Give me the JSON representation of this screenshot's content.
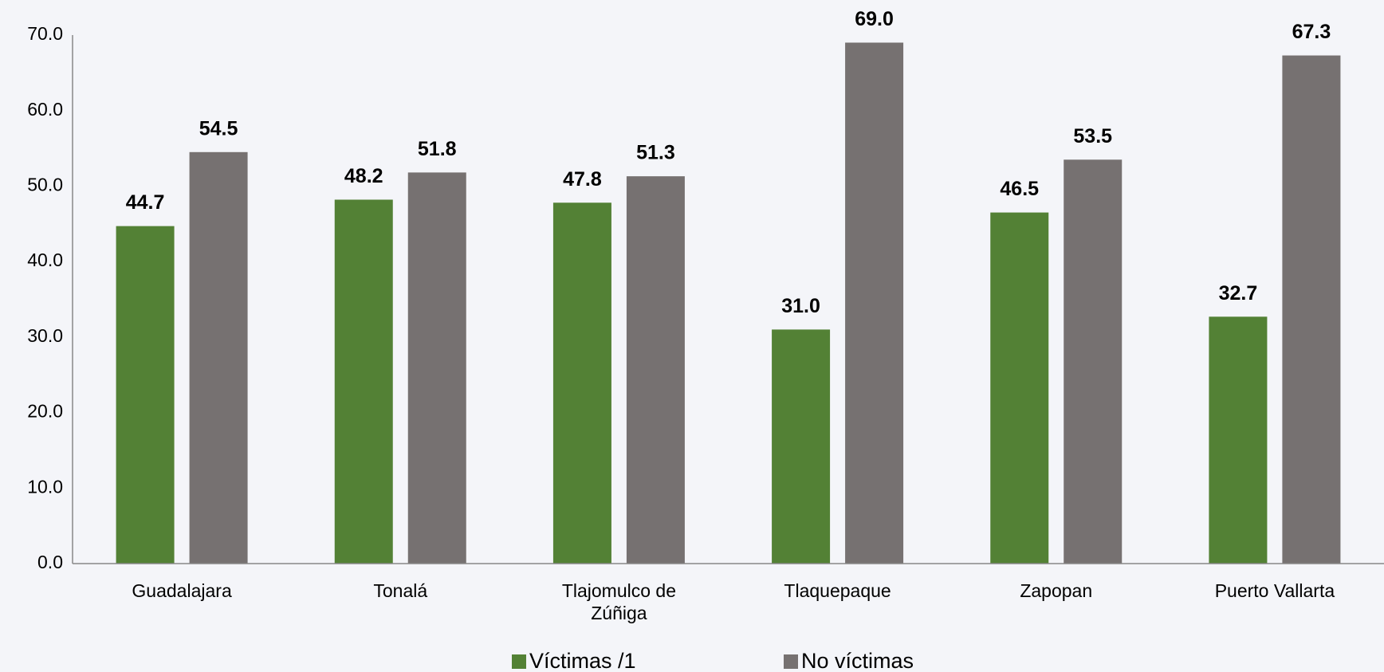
{
  "chart_data": {
    "type": "bar",
    "categories": [
      "Guadalajara",
      "Tonalá",
      "Tlajomulco de Zúñiga",
      "Tlaquepaque",
      "Zapopan",
      "Puerto Vallarta"
    ],
    "series": [
      {
        "name": "Víctimas /1",
        "color": "#538135",
        "values": [
          44.7,
          48.2,
          47.8,
          31.0,
          46.5,
          32.7
        ],
        "value_labels": [
          "44.7",
          "48.2",
          "47.8",
          "31.0",
          "46.5",
          "32.7"
        ]
      },
      {
        "name": "No víctimas",
        "color": "#767171",
        "values": [
          54.5,
          51.8,
          51.3,
          69.0,
          53.5,
          67.3
        ],
        "value_labels": [
          "54.5",
          "51.8",
          "51.3",
          "69.0",
          "53.5",
          "67.3"
        ]
      }
    ],
    "ylim": [
      0,
      70
    ],
    "yticks": [
      {
        "value": 0,
        "label": "0.0"
      },
      {
        "value": 10,
        "label": "10.0"
      },
      {
        "value": 20,
        "label": "20.0"
      },
      {
        "value": 30,
        "label": "30.0"
      },
      {
        "value": 40,
        "label": "40.0"
      },
      {
        "value": 50,
        "label": "50.0"
      },
      {
        "value": 60,
        "label": "60.0"
      },
      {
        "value": 70,
        "label": "70.0"
      }
    ],
    "grid": false,
    "legend": "bottom"
  }
}
